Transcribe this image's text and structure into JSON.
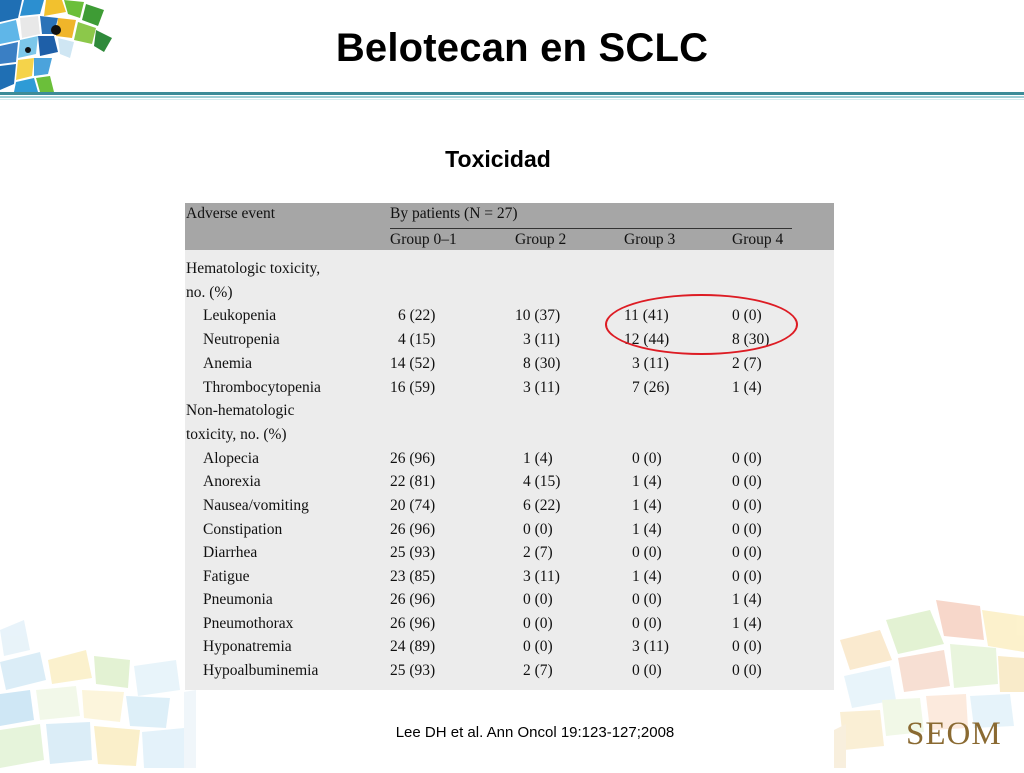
{
  "title": "Belotecan en SCLC",
  "subtitle": "Toxicidad",
  "table": {
    "header": {
      "adverse_event": "Adverse event",
      "by_patients": "By patients (N = 27)",
      "groups": [
        "Group 0–1",
        "Group 2",
        "Group 3",
        "Group 4"
      ]
    },
    "sections": [
      {
        "label_line1": "Hematologic toxicity,",
        "label_line2": "no. (%)"
      },
      {
        "label_line1": "Non-hematologic",
        "label_line2": "toxicity, no. (%)"
      }
    ],
    "rows": [
      {
        "event": "Leukopenia",
        "values": [
          "6 (22)",
          "10 (37)",
          "11 (41)",
          "0 (0)"
        ]
      },
      {
        "event": "Neutropenia",
        "values": [
          "4 (15)",
          "3 (11)",
          "12 (44)",
          "8 (30)"
        ]
      },
      {
        "event": "Anemia",
        "values": [
          "14 (52)",
          "8 (30)",
          "3 (11)",
          "2 (7)"
        ]
      },
      {
        "event": "Thrombocytopenia",
        "values": [
          "16 (59)",
          "3 (11)",
          "7 (26)",
          "1 (4)"
        ]
      },
      {
        "event": "Alopecia",
        "values": [
          "26 (96)",
          "1 (4)",
          "0 (0)",
          "0 (0)"
        ]
      },
      {
        "event": "Anorexia",
        "values": [
          "22 (81)",
          "4 (15)",
          "1 (4)",
          "0 (0)"
        ]
      },
      {
        "event": "Nausea/vomiting",
        "values": [
          "20 (74)",
          "6 (22)",
          "1 (4)",
          "0 (0)"
        ]
      },
      {
        "event": "Constipation",
        "values": [
          "26 (96)",
          "0 (0)",
          "1 (4)",
          "0 (0)"
        ]
      },
      {
        "event": "Diarrhea",
        "values": [
          "25 (93)",
          "2 (7)",
          "0 (0)",
          "0 (0)"
        ]
      },
      {
        "event": "Fatigue",
        "values": [
          "23 (85)",
          "3 (11)",
          "1 (4)",
          "0 (0)"
        ]
      },
      {
        "event": "Pneumonia",
        "values": [
          "26 (96)",
          "0 (0)",
          "0 (0)",
          "1 (4)"
        ]
      },
      {
        "event": "Pneumothorax",
        "values": [
          "26 (96)",
          "0 (0)",
          "0 (0)",
          "1 (4)"
        ]
      },
      {
        "event": "Hyponatremia",
        "values": [
          "24 (89)",
          "0 (0)",
          "3 (11)",
          "0 (0)"
        ]
      },
      {
        "event": "Hypoalbuminemia",
        "values": [
          "25 (93)",
          "2 (7)",
          "0 (0)",
          "0 (0)"
        ]
      }
    ]
  },
  "citation": "Lee DH et al. Ann Oncol 19:123-127;2008",
  "brand": "SEOM",
  "colors": {
    "header_band": "#a6a6a6",
    "table_body": "#ececec",
    "highlight_ellipse": "#dd1c24",
    "rule_teal": "#3d8c98",
    "brand": "#8a6a32"
  },
  "icons": {
    "top_left": "mosaic-logo-icon",
    "bottom": "mosaic-decoration-icon"
  }
}
